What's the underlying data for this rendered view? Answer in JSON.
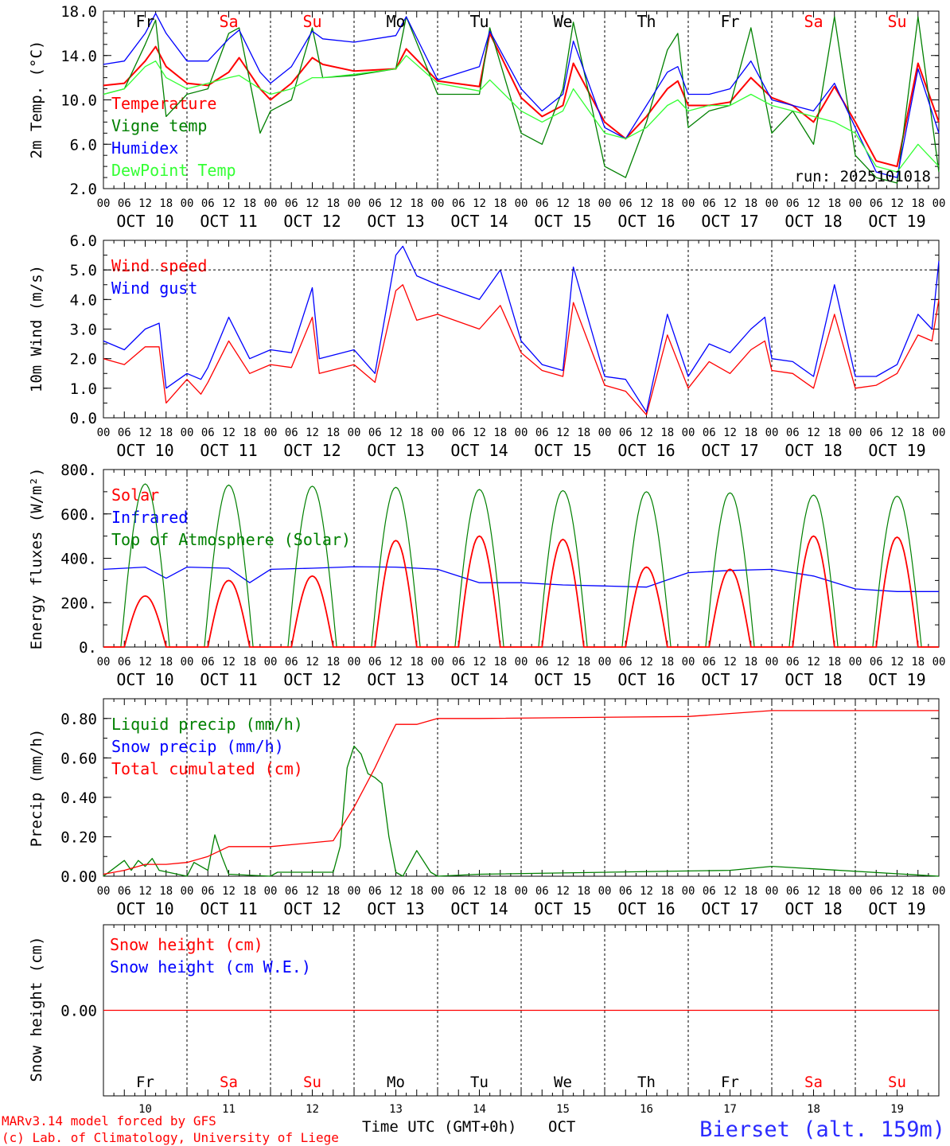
{
  "colors": {
    "red": "#ff0000",
    "green": "#008000",
    "blue": "#0000ff",
    "lightgreen": "#33ff33",
    "black": "#000000",
    "station": "#2b2bff"
  },
  "days": {
    "codes": [
      "Fr",
      "Sa",
      "Su",
      "Mo",
      "Tu",
      "We",
      "Th",
      "Fr",
      "Sa",
      "Su"
    ],
    "weekend": [
      false,
      true,
      true,
      false,
      false,
      false,
      false,
      false,
      true,
      true
    ],
    "dates": [
      "OCT 10",
      "OCT 11",
      "OCT 12",
      "OCT 13",
      "OCT 14",
      "OCT 15",
      "OCT 16",
      "OCT 17",
      "OCT 18",
      "OCT 19"
    ],
    "numbers": [
      "10",
      "11",
      "12",
      "13",
      "14",
      "15",
      "16",
      "17",
      "18",
      "19"
    ],
    "hour_labels": [
      "00",
      "06",
      "12",
      "18"
    ],
    "final_hour_label": "00"
  },
  "panels": {
    "temp": {
      "ylabel": "2m Temp. (°C)",
      "ticks": [
        "18.0",
        "14.0",
        "10.0",
        "6.0",
        "2.0"
      ],
      "run": "run: 2025101018",
      "legend": [
        "Temperature",
        "Vigne temp",
        "Humidex",
        "DewPoint Temp"
      ]
    },
    "wind": {
      "ylabel": "10m Wind (m/s)",
      "ticks": [
        "6.0",
        "5.0",
        "4.0",
        "3.0",
        "2.0",
        "1.0",
        "0.0"
      ],
      "legend": [
        "Wind speed",
        "Wind gust"
      ]
    },
    "energy": {
      "ylabel": "Energy fluxes (W/m²)",
      "ticks": [
        "800.",
        "600.",
        "400.",
        "200.",
        "0."
      ],
      "legend": [
        "Solar",
        "Infrared",
        "Top of Atmosphere (Solar)"
      ]
    },
    "precip": {
      "ylabel": "Precip (mm/h)",
      "ticks": [
        "0.80",
        "0.60",
        "0.40",
        "0.20",
        "0.00"
      ],
      "legend": [
        "Liquid precip (mm/h)",
        "Snow precip (mm/h)",
        "Total cumulated (cm)"
      ]
    },
    "snow": {
      "ylabel": "Snow height (cm)",
      "ticks": [
        "0.00"
      ],
      "legend": [
        "Snow height (cm)",
        "Snow height (cm W.E.)"
      ]
    }
  },
  "footer": {
    "model": "MARv3.14 model forced by GFS",
    "lab": "(c) Lab. of Climatology, University of Liege",
    "time_label": "Time UTC (GMT+0h)",
    "month": "OCT",
    "station": "Bierset (alt. 159m)"
  },
  "chart_data": [
    {
      "type": "line",
      "title": "2m Temp. (°C)",
      "x_unit": "hours since OCT 10 00 UTC",
      "ylim": [
        2,
        18
      ],
      "series": [
        {
          "name": "Temperature",
          "color": "#ff0000",
          "x": [
            0,
            6,
            12,
            15,
            18,
            24,
            30,
            36,
            39,
            45,
            48,
            54,
            60,
            63,
            72,
            84,
            87,
            96,
            108,
            111,
            120,
            126,
            132,
            135,
            144,
            150,
            156,
            162,
            165,
            168,
            174,
            180,
            186,
            192,
            198,
            204,
            210,
            216,
            222,
            228,
            234,
            240
          ],
          "y": [
            11.3,
            11.5,
            13.5,
            14.8,
            13.0,
            11.5,
            11.3,
            12.5,
            13.8,
            11.0,
            10.0,
            11.5,
            13.8,
            13.2,
            12.6,
            12.8,
            14.6,
            11.7,
            11.2,
            16.0,
            10.2,
            8.5,
            9.5,
            13.3,
            8.0,
            6.5,
            8.5,
            11.0,
            11.7,
            9.5,
            9.5,
            9.8,
            12.0,
            10.2,
            9.5,
            8.0,
            11.2,
            8.0,
            4.5,
            4.0,
            13.3,
            8.0
          ]
        },
        {
          "name": "Vigne temp",
          "color": "#008000",
          "x": [
            0,
            6,
            12,
            15,
            18,
            24,
            30,
            36,
            39,
            45,
            48,
            54,
            60,
            63,
            72,
            84,
            87,
            96,
            108,
            111,
            120,
            126,
            132,
            135,
            144,
            150,
            156,
            162,
            165,
            168,
            174,
            180,
            186,
            192,
            198,
            204,
            210,
            216,
            222,
            228,
            234,
            240
          ],
          "y": [
            10.5,
            11.0,
            15.0,
            17.2,
            8.5,
            10.5,
            11.0,
            16.0,
            16.5,
            7.0,
            9.0,
            10.0,
            16.5,
            12.0,
            12.2,
            12.8,
            17.5,
            10.5,
            10.5,
            16.5,
            7.0,
            6.0,
            11.0,
            17.0,
            4.0,
            3.0,
            8.0,
            14.5,
            16.0,
            7.5,
            9.0,
            9.5,
            16.5,
            7.0,
            9.0,
            6.0,
            17.5,
            5.0,
            3.0,
            2.5,
            17.5,
            3.5
          ]
        },
        {
          "name": "Humidex",
          "color": "#0000ff",
          "x": [
            0,
            6,
            12,
            15,
            18,
            24,
            30,
            36,
            39,
            45,
            48,
            54,
            60,
            63,
            72,
            84,
            87,
            96,
            108,
            111,
            120,
            126,
            132,
            135,
            144,
            150,
            156,
            162,
            165,
            168,
            174,
            180,
            186,
            192,
            198,
            204,
            210,
            216,
            222,
            228,
            234,
            240
          ],
          "y": [
            13.2,
            13.5,
            16.0,
            17.8,
            16.0,
            13.5,
            13.5,
            15.5,
            16.3,
            12.5,
            11.5,
            13.0,
            16.2,
            15.5,
            15.2,
            15.8,
            17.5,
            11.8,
            13.0,
            16.2,
            11.0,
            9.0,
            10.5,
            15.3,
            7.5,
            6.5,
            9.5,
            12.5,
            13.0,
            10.5,
            10.5,
            11.0,
            13.5,
            10.0,
            9.5,
            9.0,
            11.5,
            7.5,
            3.5,
            3.0,
            12.8,
            7.0
          ]
        },
        {
          "name": "DewPoint Temp",
          "color": "#33ff33",
          "x": [
            0,
            6,
            12,
            15,
            18,
            24,
            30,
            36,
            39,
            45,
            48,
            54,
            60,
            63,
            72,
            84,
            87,
            96,
            108,
            111,
            120,
            126,
            132,
            135,
            144,
            150,
            156,
            162,
            165,
            168,
            174,
            180,
            186,
            192,
            198,
            204,
            210,
            216,
            222,
            228,
            234,
            240
          ],
          "y": [
            10.5,
            11.0,
            13.0,
            13.5,
            12.0,
            11.0,
            11.5,
            12.0,
            12.2,
            11.0,
            10.5,
            11.0,
            12.0,
            12.0,
            12.3,
            12.8,
            14.0,
            11.5,
            10.8,
            11.8,
            9.0,
            8.0,
            9.0,
            11.0,
            7.0,
            6.5,
            7.5,
            9.5,
            10.0,
            9.0,
            9.5,
            9.5,
            10.5,
            9.5,
            9.0,
            8.5,
            8.0,
            7.0,
            4.0,
            3.5,
            6.0,
            4.0
          ]
        }
      ]
    },
    {
      "type": "line",
      "title": "10m Wind (m/s)",
      "x_unit": "hours since OCT 10 00 UTC",
      "ylim": [
        0,
        6
      ],
      "reference_line": 5.0,
      "series": [
        {
          "name": "Wind speed",
          "color": "#ff0000",
          "x": [
            0,
            6,
            12,
            16,
            18,
            24,
            28,
            30,
            36,
            42,
            48,
            54,
            60,
            62,
            72,
            78,
            84,
            86,
            90,
            96,
            108,
            114,
            120,
            126,
            132,
            135,
            144,
            150,
            156,
            162,
            168,
            174,
            180,
            186,
            190,
            192,
            198,
            204,
            210,
            216,
            222,
            228,
            234,
            238,
            240
          ],
          "y": [
            2.0,
            1.8,
            2.4,
            2.4,
            0.5,
            1.3,
            0.8,
            1.2,
            2.6,
            1.5,
            1.8,
            1.7,
            3.4,
            1.5,
            1.8,
            1.2,
            4.3,
            4.5,
            3.3,
            3.5,
            3.0,
            3.8,
            2.2,
            1.6,
            1.4,
            3.9,
            1.1,
            0.9,
            0.1,
            2.8,
            1.0,
            1.9,
            1.5,
            2.3,
            2.6,
            1.6,
            1.5,
            1.0,
            3.5,
            1.0,
            1.1,
            1.5,
            2.8,
            2.6,
            4.0
          ]
        },
        {
          "name": "Wind gust",
          "color": "#0000ff",
          "x": [
            0,
            6,
            12,
            16,
            18,
            24,
            28,
            30,
            36,
            42,
            48,
            54,
            60,
            62,
            72,
            78,
            84,
            86,
            90,
            96,
            108,
            114,
            120,
            126,
            132,
            135,
            144,
            150,
            156,
            162,
            168,
            174,
            180,
            186,
            190,
            192,
            198,
            204,
            210,
            216,
            222,
            228,
            234,
            238,
            240
          ],
          "y": [
            2.6,
            2.3,
            3.0,
            3.2,
            1.0,
            1.5,
            1.3,
            1.7,
            3.4,
            2.0,
            2.3,
            2.2,
            4.4,
            2.0,
            2.3,
            1.5,
            5.5,
            5.8,
            4.8,
            4.5,
            4.0,
            5.0,
            2.6,
            1.8,
            1.6,
            5.1,
            1.4,
            1.3,
            0.2,
            3.5,
            1.4,
            2.5,
            2.2,
            3.0,
            3.4,
            2.0,
            1.9,
            1.4,
            4.5,
            1.4,
            1.4,
            1.8,
            3.5,
            3.0,
            5.3
          ]
        }
      ]
    },
    {
      "type": "line",
      "title": "Energy fluxes (W/m²)",
      "x_unit": "hours since OCT 10 00 UTC",
      "ylim": [
        0,
        800
      ],
      "solar_peaks": [
        230,
        300,
        320,
        480,
        500,
        485,
        360,
        350,
        500,
        495
      ],
      "toa_peaks": [
        735,
        730,
        725,
        720,
        710,
        705,
        700,
        695,
        685,
        680
      ],
      "series": [
        {
          "name": "Infrared",
          "color": "#0000ff",
          "x": [
            0,
            12,
            18,
            24,
            36,
            42,
            48,
            60,
            72,
            84,
            96,
            108,
            120,
            132,
            144,
            156,
            168,
            180,
            192,
            204,
            216,
            228,
            240
          ],
          "y": [
            350,
            360,
            310,
            360,
            355,
            290,
            350,
            355,
            362,
            360,
            350,
            290,
            290,
            280,
            275,
            270,
            335,
            345,
            350,
            320,
            262,
            250,
            250
          ]
        }
      ]
    },
    {
      "type": "line",
      "title": "Precip (mm/h)",
      "x_unit": "hours since OCT 10 00 UTC",
      "ylim": [
        0,
        0.9
      ],
      "series": [
        {
          "name": "Liquid precip (mm/h)",
          "color": "#008000",
          "x": [
            0,
            6,
            8,
            10,
            12,
            14,
            16,
            24,
            26,
            30,
            32,
            34,
            36,
            48,
            50,
            66,
            68,
            70,
            72,
            74,
            76,
            78,
            80,
            82,
            84,
            86,
            90,
            94,
            96,
            108,
            180,
            192,
            240
          ],
          "y": [
            0,
            0.08,
            0.03,
            0.08,
            0.05,
            0.09,
            0.03,
            0,
            0.07,
            0.03,
            0.21,
            0.1,
            0.01,
            0,
            0.02,
            0.02,
            0.15,
            0.55,
            0.66,
            0.62,
            0.52,
            0.5,
            0.47,
            0.2,
            0.02,
            0,
            0.13,
            0.02,
            0,
            0.01,
            0.03,
            0.05,
            0
          ]
        },
        {
          "name": "Total cumulated (cm)",
          "color": "#ff0000",
          "x": [
            0,
            6,
            12,
            18,
            24,
            30,
            36,
            48,
            60,
            66,
            72,
            78,
            82,
            84,
            90,
            96,
            108,
            168,
            192,
            240
          ],
          "y": [
            0.01,
            0.03,
            0.06,
            0.06,
            0.07,
            0.1,
            0.15,
            0.15,
            0.17,
            0.18,
            0.35,
            0.55,
            0.7,
            0.77,
            0.77,
            0.8,
            0.8,
            0.81,
            0.84,
            0.84
          ]
        }
      ]
    },
    {
      "type": "line",
      "title": "Snow height (cm)",
      "x_unit": "hours since OCT 10 00 UTC",
      "ylim": [
        -1,
        1
      ],
      "series": [
        {
          "name": "Snow height (cm)",
          "color": "#ff0000",
          "x": [
            0,
            240
          ],
          "y": [
            0,
            0
          ]
        }
      ]
    }
  ]
}
